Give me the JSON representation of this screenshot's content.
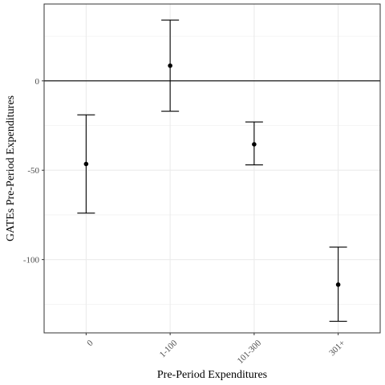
{
  "chart_data": {
    "type": "scatter",
    "subtype": "point-with-error-bars",
    "title": "",
    "xlabel": "Pre-Period Expenditures",
    "ylabel": "GATEs Pre-Period Expenditures",
    "categories": [
      "0",
      "1-100",
      "101-300",
      "301+"
    ],
    "estimates": [
      -46.5,
      8.5,
      -35.5,
      -114
    ],
    "ci_lower": [
      -74,
      -17,
      -47,
      -134.5
    ],
    "ci_upper": [
      -19,
      34,
      -23,
      -93
    ],
    "ylim": [
      -141,
      43
    ],
    "yticks": [
      -100,
      -50,
      0
    ],
    "yticks_minor": [
      -125,
      -75,
      -25,
      25
    ],
    "reference_line": 0,
    "grid": true,
    "x_tick_rotation": 45,
    "colors": {
      "points": "#000000",
      "grid": "#ebebeb",
      "panel_border": "#333333",
      "tick_labels": "#4d4d4d"
    }
  }
}
